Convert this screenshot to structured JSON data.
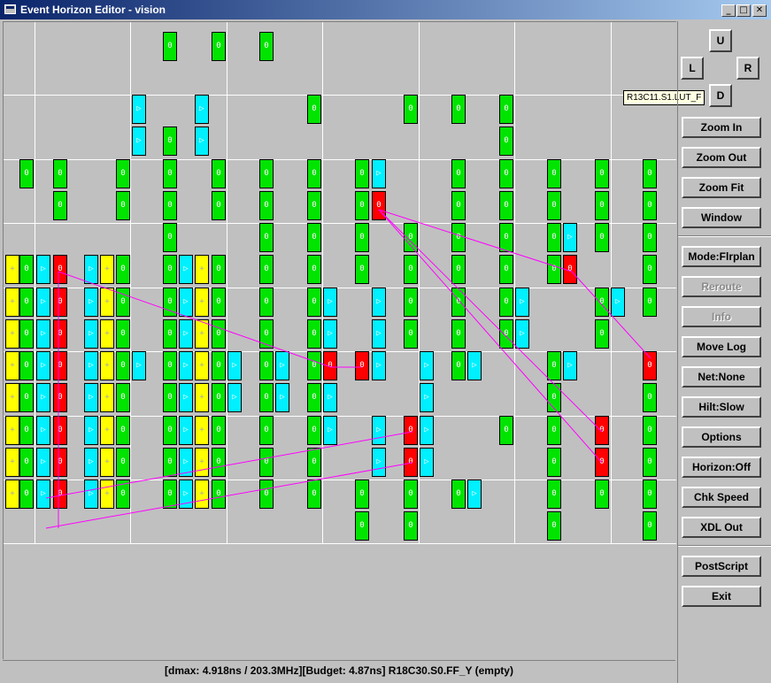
{
  "window": {
    "title": "Event Horizon Editor - vision",
    "minimize_glyph": "_",
    "maximize_glyph": "□",
    "close_glyph": "✕"
  },
  "nav": {
    "up": "U",
    "left": "L",
    "right": "R",
    "down": "D"
  },
  "tooltip": "R13C11.S1.LUT_F",
  "buttons": {
    "zoom_in": "Zoom In",
    "zoom_out": "Zoom Out",
    "zoom_fit": "Zoom Fit",
    "window": "Window",
    "mode": "Mode:Flrplan",
    "reroute": "Reroute",
    "info": "Info",
    "move_log": "Move Log",
    "net": "Net:None",
    "hilt": "Hilt:Slow",
    "options": "Options",
    "horizon": "Horizon:Off",
    "chk_speed": "Chk Speed",
    "xdl_out": "XDL Out",
    "postscript": "PostScript",
    "exit": "Exit"
  },
  "status": "[dmax:  4.918ns / 203.3MHz][Budget:  4.87ns] R18C30.S0.FF_Y (empty)",
  "colors": {
    "lut": "#00e400",
    "ff": "#00f0ff",
    "carry": "#ffff00",
    "critical": "#ff0000",
    "net": "#ff00ff"
  },
  "cell_glyphs": {
    "g": "0",
    "c": "▷",
    "y": "+",
    "r": "0"
  }
}
